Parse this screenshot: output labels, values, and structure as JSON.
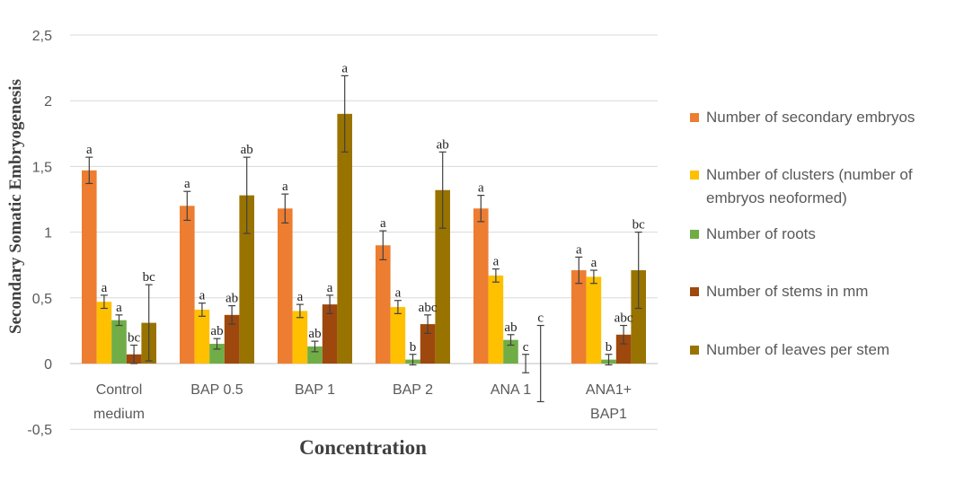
{
  "chart_data": {
    "type": "bar",
    "title": "",
    "xlabel": "Concentration",
    "ylabel": "Secondary Somatic Embryogenesis",
    "ylim": [
      -0.5,
      2.5
    ],
    "yticks": [
      "-0,5",
      "0",
      "0,5",
      "1",
      "1,5",
      "2",
      "2,5"
    ],
    "grid": true,
    "legend_position": "right",
    "categories": [
      [
        "Control",
        "medium"
      ],
      [
        "BAP 0.5"
      ],
      [
        "BAP 1"
      ],
      [
        "BAP 2"
      ],
      [
        "ANA 1"
      ],
      [
        "ANA1+",
        "BAP1"
      ]
    ],
    "series": [
      {
        "name": "Number of secondary embryos",
        "name_lines": [
          "Number of secondary embryos"
        ],
        "color": "#ED7D31",
        "values": [
          1.47,
          1.2,
          1.18,
          0.9,
          1.18,
          0.71
        ],
        "errors": [
          0.1,
          0.11,
          0.11,
          0.11,
          0.1,
          0.1
        ],
        "letters": [
          "a",
          "a",
          "a",
          "a",
          "a",
          "a"
        ]
      },
      {
        "name": "Number of clusters (number of embryos neoformed)",
        "name_lines": [
          "Number of clusters (number of",
          "embryos neoformed)"
        ],
        "color": "#FFC000",
        "values": [
          0.47,
          0.41,
          0.4,
          0.43,
          0.67,
          0.66
        ],
        "errors": [
          0.05,
          0.05,
          0.05,
          0.05,
          0.05,
          0.05
        ],
        "letters": [
          "a",
          "a",
          "a",
          "a",
          "a",
          "a"
        ]
      },
      {
        "name": "Number of roots",
        "name_lines": [
          "Number of roots"
        ],
        "color": "#70AD47",
        "values": [
          0.33,
          0.15,
          0.13,
          0.03,
          0.18,
          0.03
        ],
        "errors": [
          0.04,
          0.04,
          0.04,
          0.04,
          0.04,
          0.04
        ],
        "letters": [
          "a",
          "ab",
          "ab",
          "b",
          "ab",
          "b"
        ]
      },
      {
        "name": "Number of stems in mm",
        "name_lines": [
          "Number of stems in mm"
        ],
        "color": "#9E480E",
        "values": [
          0.07,
          0.37,
          0.45,
          0.3,
          0.0,
          0.22
        ],
        "errors": [
          0.07,
          0.07,
          0.07,
          0.07,
          0.07,
          0.07
        ],
        "letters": [
          "bc",
          "ab",
          "a",
          "abc",
          "c",
          "abc"
        ]
      },
      {
        "name": "Number of leaves per stem",
        "name_lines": [
          "Number of leaves per stem"
        ],
        "color": "#997300",
        "values": [
          0.31,
          1.28,
          1.9,
          1.32,
          0.0,
          0.71
        ],
        "errors": [
          0.29,
          0.29,
          0.29,
          0.29,
          0.29,
          0.29
        ],
        "letters": [
          "bc",
          "ab",
          "a",
          "ab",
          "c",
          "bc"
        ]
      }
    ]
  }
}
